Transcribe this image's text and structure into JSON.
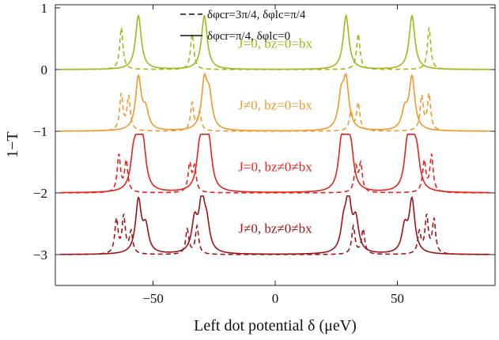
{
  "chart_data": {
    "type": "line",
    "title": "",
    "xlabel": "Left dot potential δ (μeV)",
    "ylabel": "1−T",
    "xlim": [
      -90,
      90
    ],
    "ylim": [
      -3.5,
      1.05
    ],
    "xticks": [
      -50,
      0,
      50
    ],
    "xtick_labels": [
      "−50",
      "0",
      "50"
    ],
    "yticks": [
      1,
      0,
      -1,
      -2,
      -3
    ],
    "ytick_labels": [
      "1",
      "0",
      "−1",
      "−2",
      "−3"
    ],
    "grid": false,
    "legend": {
      "placement": "top-center",
      "entries": [
        {
          "style": "dashed",
          "label": "δφcr=3π/4, δφlc=π/4"
        },
        {
          "style": "solid",
          "label": "δφcr=π/4, δφlc=0"
        }
      ]
    },
    "panels": [
      {
        "annotation": "J=0, bz=0=bx",
        "offset": 0,
        "color": "#a6b51a",
        "solid_peaks": [
          [
            -56,
            0.87
          ],
          [
            -29,
            0.87
          ],
          [
            29,
            0.87
          ],
          [
            56,
            0.87
          ]
        ],
        "dashed_peaks": [
          [
            -63,
            0.68
          ],
          [
            -34,
            0.58
          ],
          [
            34,
            0.58
          ],
          [
            63,
            0.68
          ]
        ]
      },
      {
        "annotation": "J≠0, bz=0=bx",
        "offset": -1,
        "color": "#f2992e",
        "solid_peaks": [
          [
            -56,
            0.85
          ],
          [
            -53,
            0.3
          ],
          [
            -29,
            0.75
          ],
          [
            -27,
            0.5
          ],
          [
            27,
            0.5
          ],
          [
            29,
            0.75
          ],
          [
            53,
            0.3
          ],
          [
            56,
            0.85
          ]
        ],
        "dashed_peaks": [
          [
            -63,
            0.58
          ],
          [
            -60,
            0.55
          ],
          [
            -34,
            0.45
          ],
          [
            -31,
            0.3
          ],
          [
            31,
            0.3
          ],
          [
            34,
            0.45
          ],
          [
            60,
            0.55
          ],
          [
            63,
            0.58
          ]
        ]
      },
      {
        "annotation": "J=0, bz≠0≠bx",
        "offset": -2,
        "color": "#e8221e",
        "solid_peaks": [
          [
            -56,
            0.8
          ],
          [
            -54,
            0.6
          ],
          [
            -58,
            0.5
          ],
          [
            -29,
            0.8
          ],
          [
            -31,
            0.55
          ],
          [
            -27,
            0.6
          ],
          [
            27,
            0.6
          ],
          [
            29,
            0.8
          ],
          [
            31,
            0.55
          ],
          [
            54,
            0.6
          ],
          [
            56,
            0.8
          ],
          [
            58,
            0.5
          ]
        ],
        "dashed_peaks": [
          [
            -64,
            0.6
          ],
          [
            -61,
            0.5
          ],
          [
            -35,
            0.45
          ],
          [
            -33,
            0.4
          ],
          [
            33,
            0.4
          ],
          [
            35,
            0.45
          ],
          [
            61,
            0.5
          ],
          [
            64,
            0.6
          ]
        ]
      },
      {
        "annotation": "J≠0, bz≠0≠bx",
        "offset": -3,
        "color": "#9e1418",
        "solid_peaks": [
          [
            -56,
            0.85
          ],
          [
            -53,
            0.4
          ],
          [
            -30,
            0.82
          ],
          [
            -33,
            0.5
          ],
          [
            -28,
            0.4
          ],
          [
            28,
            0.4
          ],
          [
            30,
            0.82
          ],
          [
            33,
            0.5
          ],
          [
            53,
            0.4
          ],
          [
            56,
            0.85
          ]
        ],
        "dashed_peaks": [
          [
            -65,
            0.55
          ],
          [
            -62,
            0.6
          ],
          [
            -59,
            0.35
          ],
          [
            -36,
            0.4
          ],
          [
            -32,
            0.45
          ],
          [
            32,
            0.45
          ],
          [
            36,
            0.4
          ],
          [
            59,
            0.35
          ],
          [
            62,
            0.6
          ],
          [
            65,
            0.55
          ]
        ]
      }
    ]
  }
}
